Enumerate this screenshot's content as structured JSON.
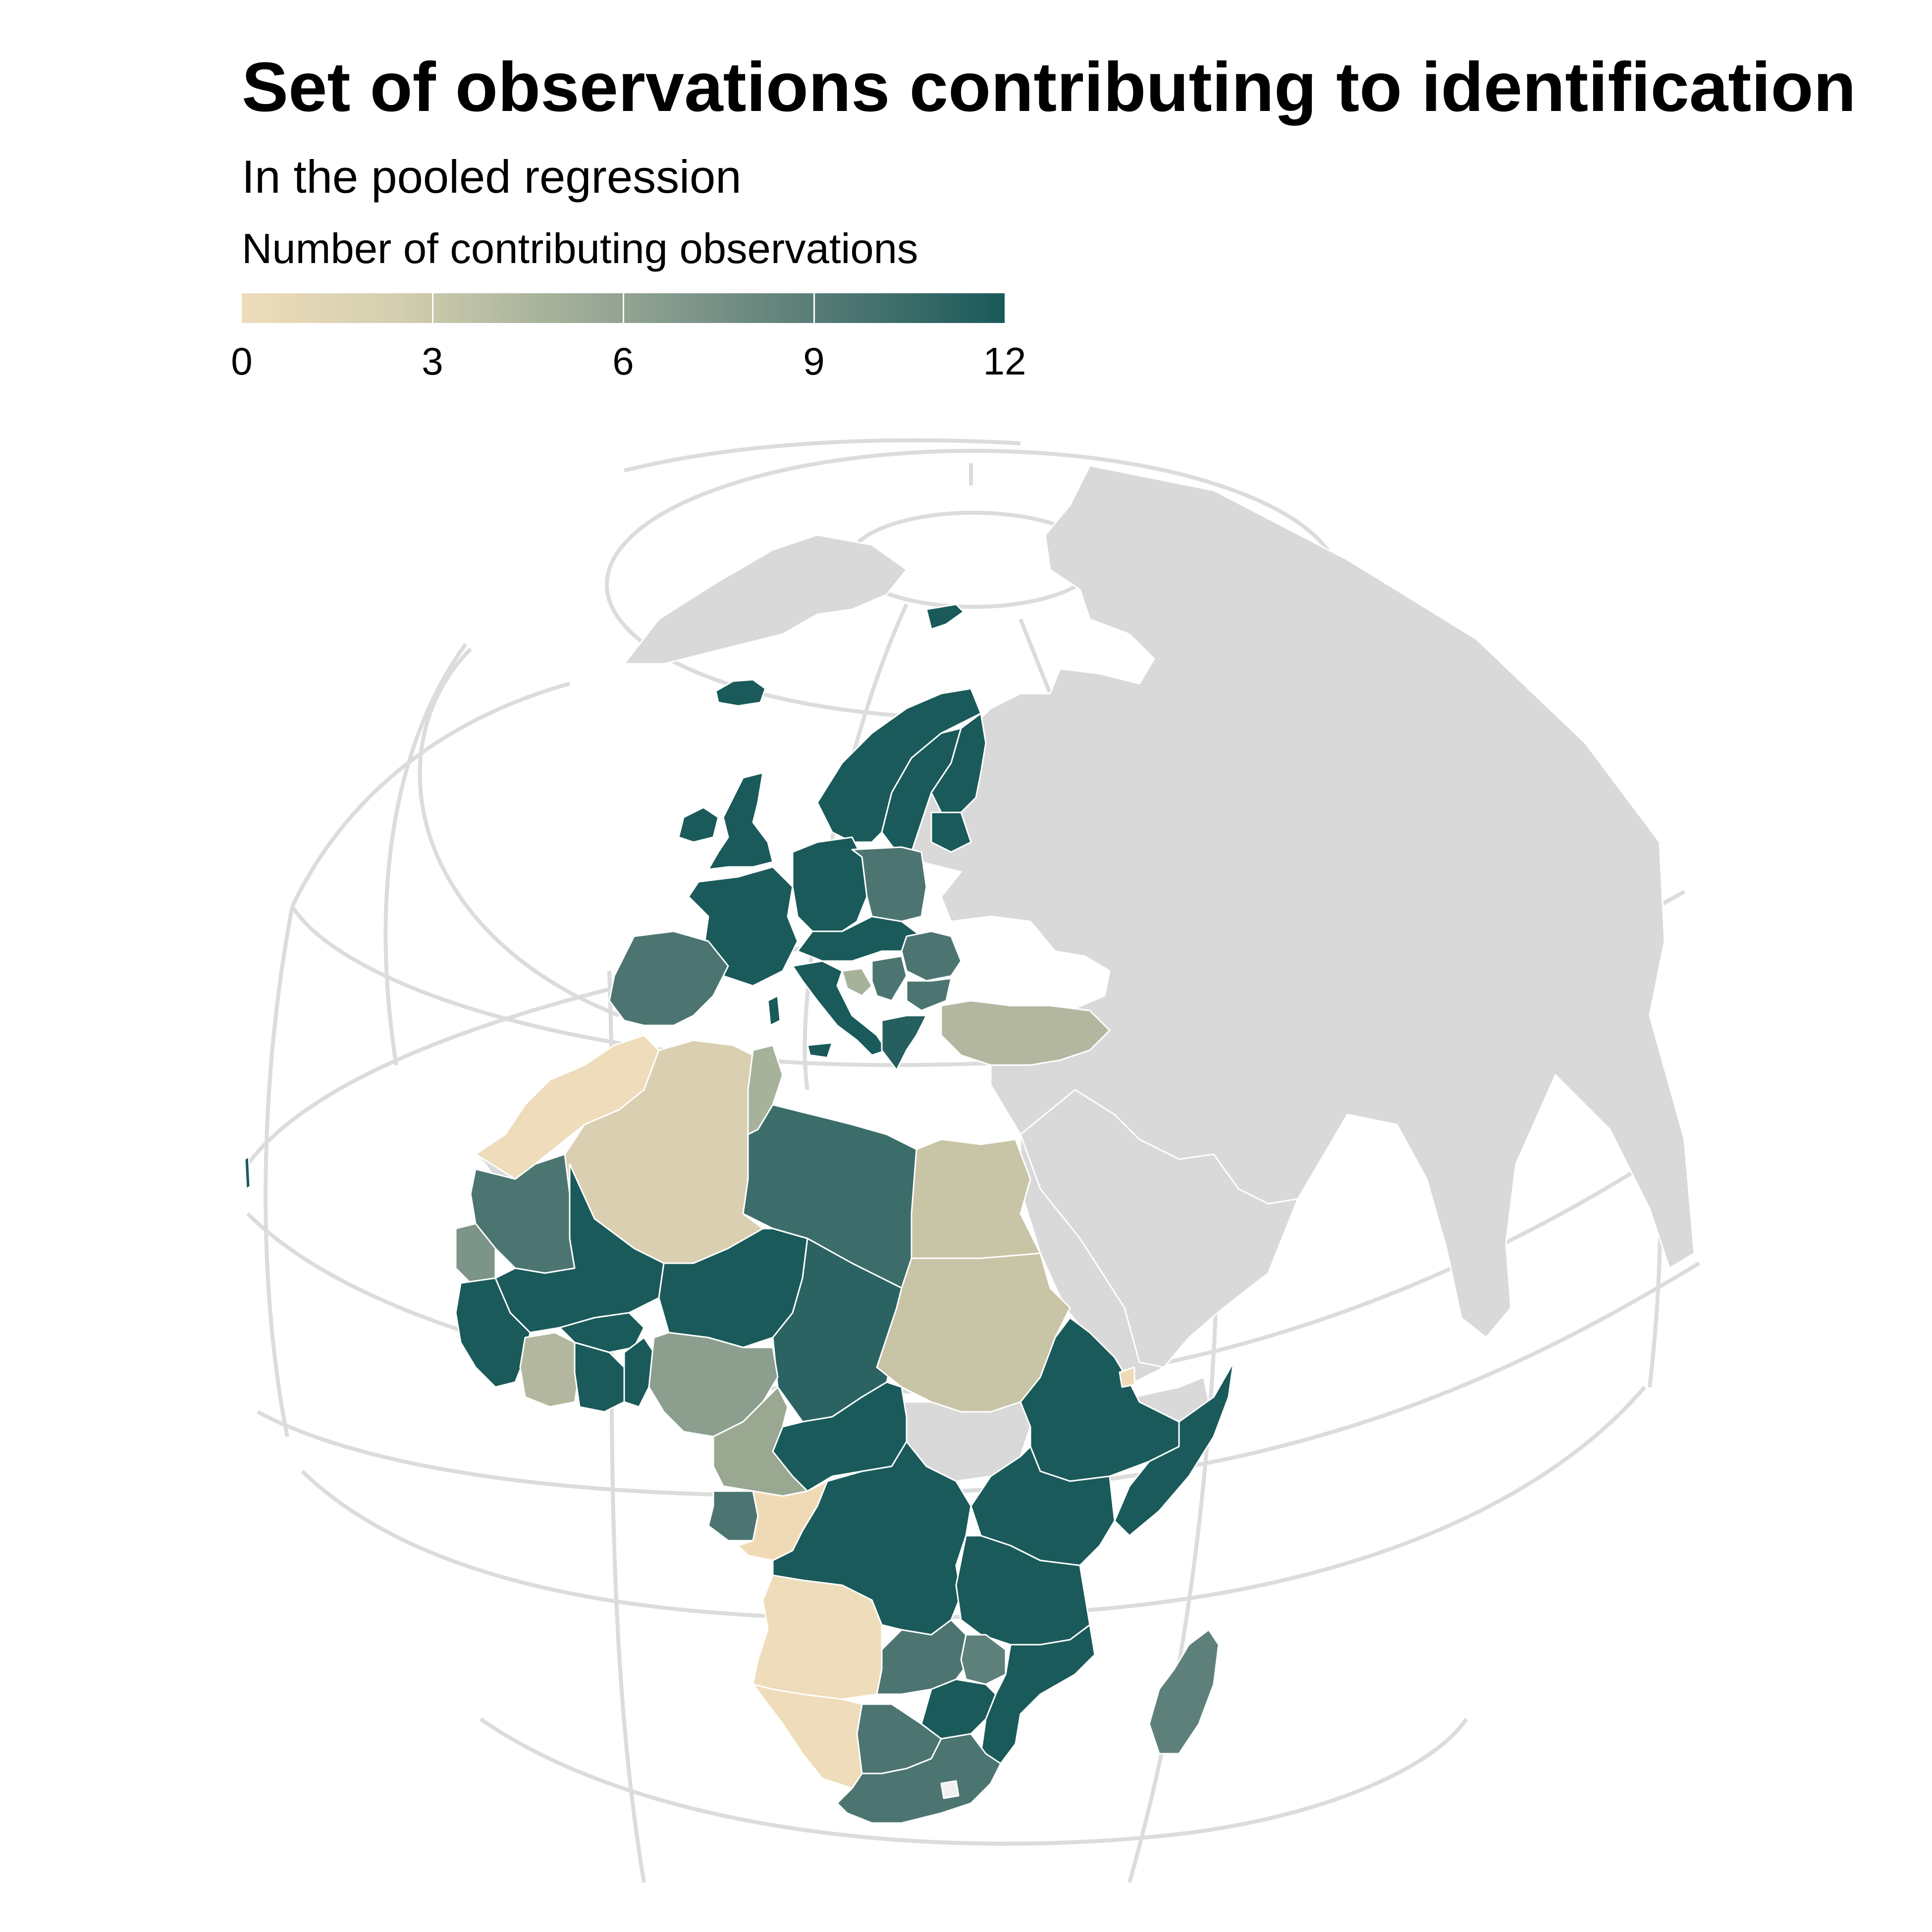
{
  "title": "Set of observations contributing to identification",
  "subtitle": "In the pooled regression",
  "legend": {
    "title": "Number of contributing observations",
    "ticks": [
      "0",
      "3",
      "6",
      "9",
      "12"
    ],
    "min": 0,
    "max": 12,
    "low_color": "#eedcba",
    "high_color": "#1a5a5a"
  },
  "colors": {
    "no_data": "#d9d9d9",
    "graticule": "#dcdcdc",
    "border": "#ffffff"
  },
  "map_data": {
    "projection": "orthographic",
    "regions": [
      {
        "name": "Iceland",
        "value": 12
      },
      {
        "name": "Svalbard",
        "value": 12
      },
      {
        "name": "Norway",
        "value": 12
      },
      {
        "name": "Sweden",
        "value": 12
      },
      {
        "name": "Finland",
        "value": 12
      },
      {
        "name": "United Kingdom",
        "value": 12
      },
      {
        "name": "Ireland",
        "value": 12
      },
      {
        "name": "France",
        "value": 12
      },
      {
        "name": "Germany",
        "value": 12
      },
      {
        "name": "Poland",
        "value": 8
      },
      {
        "name": "Spain",
        "value": 8
      },
      {
        "name": "Italy",
        "value": 12
      },
      {
        "name": "Romania",
        "value": 8
      },
      {
        "name": "Bulgaria",
        "value": 8
      },
      {
        "name": "Greece",
        "value": 11
      },
      {
        "name": "Bosnia and Herzegovina",
        "value": 4
      },
      {
        "name": "Turkey",
        "value": 4
      },
      {
        "name": "Morocco",
        "value": 0
      },
      {
        "name": "Algeria",
        "value": 2
      },
      {
        "name": "Tunisia",
        "value": 4
      },
      {
        "name": "Libya",
        "value": 9
      },
      {
        "name": "Egypt",
        "value": 3
      },
      {
        "name": "Mauritania",
        "value": 8
      },
      {
        "name": "Senegal",
        "value": 7
      },
      {
        "name": "Mali",
        "value": 12
      },
      {
        "name": "Niger",
        "value": 12
      },
      {
        "name": "Chad",
        "value": 10
      },
      {
        "name": "Sudan",
        "value": 3
      },
      {
        "name": "Ethiopia",
        "value": 12
      },
      {
        "name": "Somalia",
        "value": 12
      },
      {
        "name": "Djibouti",
        "value": 1
      },
      {
        "name": "Nigeria",
        "value": 5
      },
      {
        "name": "Cameroon",
        "value": 5
      },
      {
        "name": "Cote d'Ivoire",
        "value": 3
      },
      {
        "name": "Ghana",
        "value": 12
      },
      {
        "name": "Central African Republic",
        "value": 12
      },
      {
        "name": "South Sudan",
        "value": null
      },
      {
        "name": "Gabon",
        "value": 8
      },
      {
        "name": "Republic of the Congo",
        "value": 0
      },
      {
        "name": "DR Congo",
        "value": 12
      },
      {
        "name": "Uganda",
        "value": 12
      },
      {
        "name": "Kenya",
        "value": 12
      },
      {
        "name": "Tanzania",
        "value": 12
      },
      {
        "name": "Angola",
        "value": 0
      },
      {
        "name": "Zambia",
        "value": 8
      },
      {
        "name": "Malawi",
        "value": 8
      },
      {
        "name": "Mozambique",
        "value": 12
      },
      {
        "name": "Zimbabwe",
        "value": 12
      },
      {
        "name": "Namibia",
        "value": 0
      },
      {
        "name": "Botswana",
        "value": 8
      },
      {
        "name": "South Africa",
        "value": 8
      },
      {
        "name": "Madagascar",
        "value": 7
      }
    ]
  }
}
